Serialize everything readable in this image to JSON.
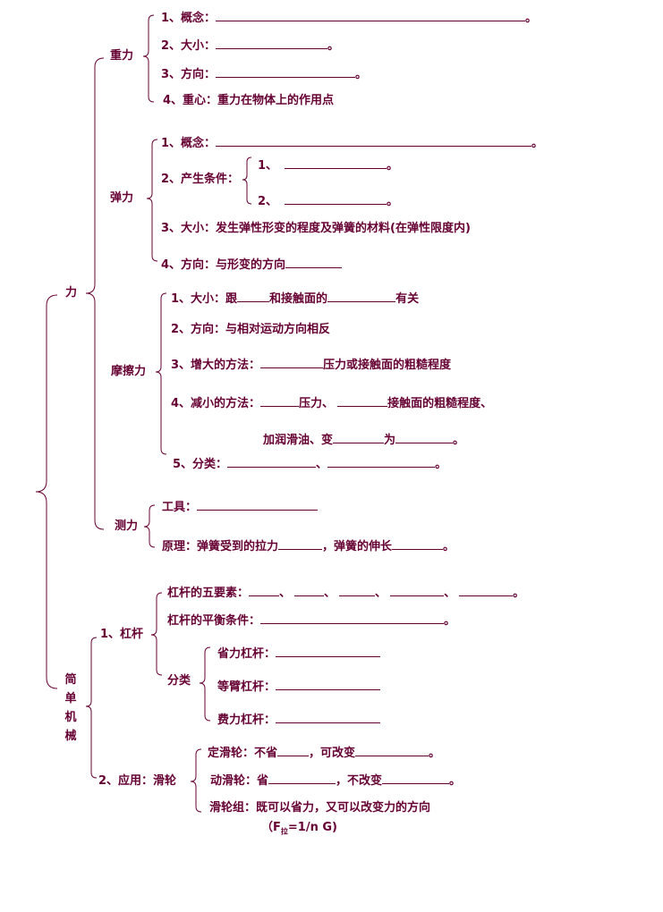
{
  "color": "#660033",
  "root": "力",
  "gravity": {
    "label": "重力",
    "items": [
      "1、概念：",
      "2、大小：",
      "3、方向：",
      "4、重心：重力在物体上的作用点"
    ]
  },
  "elastic": {
    "label": "弹力",
    "items": [
      "1、概念：",
      "2、产生条件：",
      "3、大小：发生弹性形变的程度及弹簧的材料(在弹性限度内)",
      "4、方向：与形变的方向"
    ],
    "conditions": [
      "1、",
      "2、"
    ]
  },
  "friction": {
    "label": "摩擦力",
    "i1": [
      "1、大小：跟",
      "和接触面的",
      "有关"
    ],
    "i2": "2、方向：与相对运动方向相反",
    "i3": [
      "3、增大的方法：",
      "压力或接触面的粗糙程度"
    ],
    "i4": [
      "4、减小的方法：",
      "压力、",
      "接触面的粗糙程度、"
    ],
    "i4b": [
      "加润滑油、变",
      "为"
    ],
    "i5": [
      "5、分类：",
      "、"
    ]
  },
  "measure": {
    "label": "测力",
    "tool": "工具：",
    "principle": [
      "原理：弹簧受到的拉力",
      "，弹簧的伸长"
    ]
  },
  "machines": {
    "label": [
      "简",
      "单",
      "机",
      "械"
    ],
    "lever": {
      "label": "1、杠杆",
      "elements": "杠杆的五要素：",
      "balance": "杠杆的平衡条件：",
      "classify": "分类",
      "types": [
        "省力杠杆：",
        "等臂杠杆：",
        "费力杠杆："
      ]
    },
    "pulley": {
      "label": "2、应用：滑轮",
      "fixed": [
        "定滑轮：不省",
        "，可改变"
      ],
      "movable": [
        "动滑轮：省",
        "，不改变"
      ],
      "block": "滑轮组：既可以省力，又可以改变力的方向",
      "formula": [
        "（F",
        "拉",
        "=1/n G)"
      ]
    }
  },
  "period": "。",
  "dunhao": "、"
}
